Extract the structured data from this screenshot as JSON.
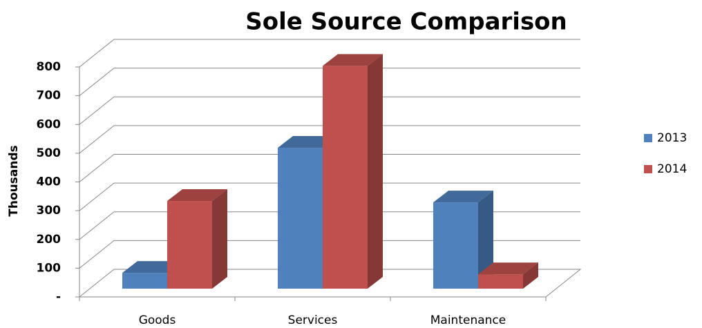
{
  "chart_data": {
    "type": "bar3d",
    "title": "Sole Source Comparison",
    "y_label": "Thousands",
    "categories": [
      "Goods",
      "Services",
      "Maintenance"
    ],
    "series": [
      {
        "name": "2013",
        "color": "#4f81bd",
        "values": [
          55,
          490,
          300
        ]
      },
      {
        "name": "2014",
        "color": "#c0504d",
        "values": [
          305,
          775,
          50
        ]
      }
    ],
    "ylim": [
      0,
      800
    ],
    "yticks": [
      {
        "value": 0,
        "label": "-"
      },
      100,
      200,
      300,
      400,
      500,
      600,
      700,
      800
    ],
    "grid": true,
    "legend": "right"
  }
}
